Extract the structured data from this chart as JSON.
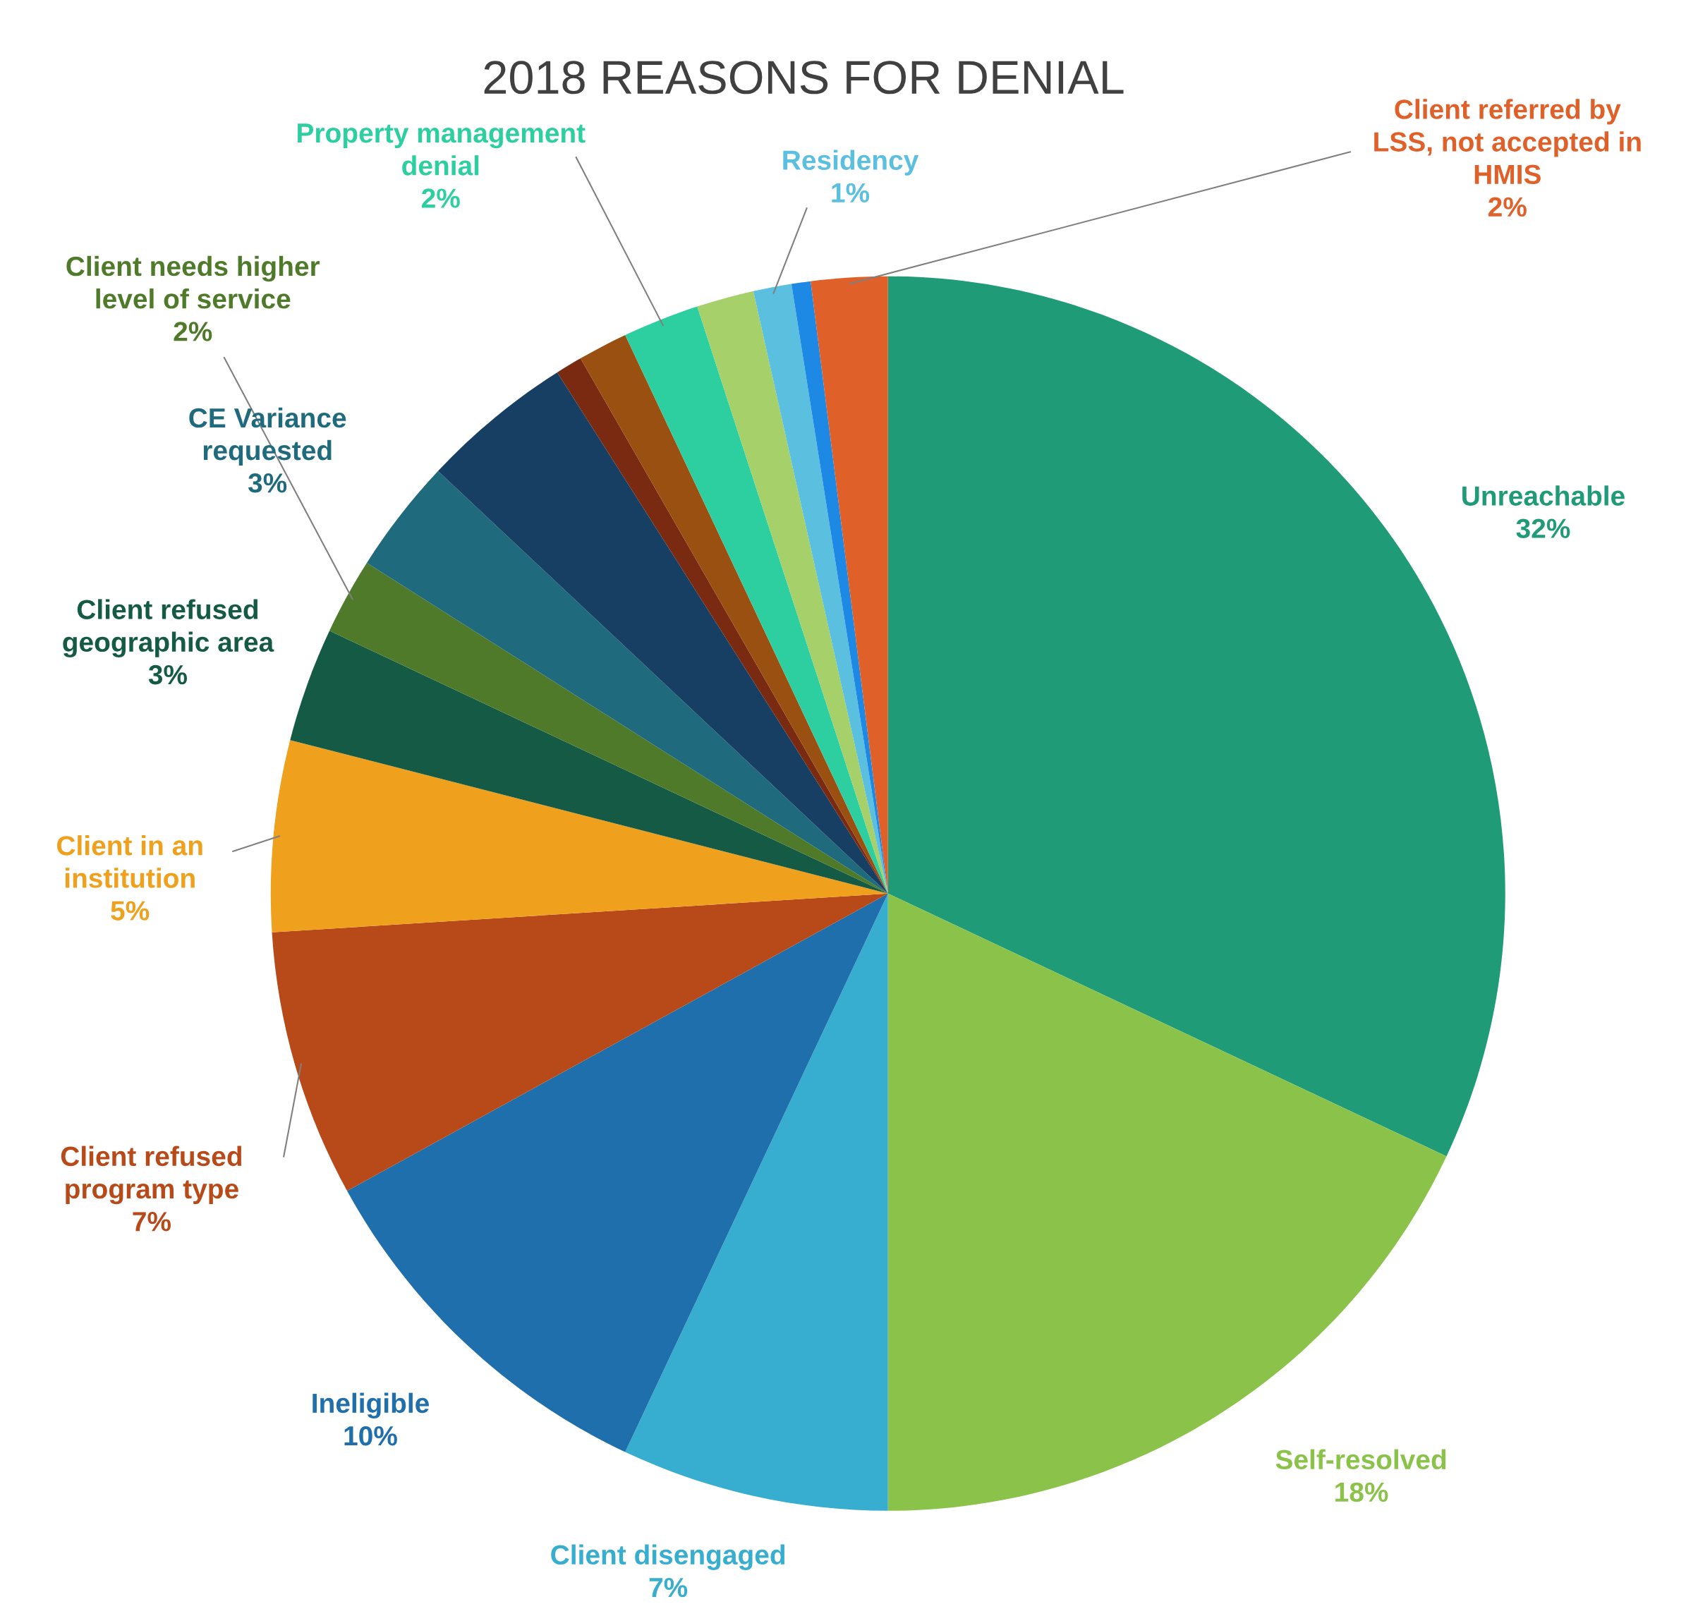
{
  "chart_data": {
    "type": "pie",
    "title": "2018 REASONS FOR DENIAL",
    "categories": [
      "Unreachable",
      "Self-resolved",
      "Client disengaged",
      "Ineligible",
      "Client refused\nprogram type",
      "Client in an\ninstitution",
      "Client refused\ngeographic area",
      "Client needs higher\nlevel of service",
      "CE Variance\nrequested",
      null,
      null,
      null,
      "Property management\ndenial",
      null,
      "Residency",
      null,
      "Client referred by\nLSS, not accepted in\nHMIS"
    ],
    "values": [
      32,
      18,
      7,
      10,
      7,
      5,
      3,
      2,
      3,
      4,
      0.7,
      1.3,
      2,
      1.5,
      1,
      0.5,
      2
    ],
    "value_labels": [
      "32%",
      "18%",
      "7%",
      "10%",
      "7%",
      "5%",
      "3%",
      "2%",
      "3%",
      null,
      null,
      null,
      "2%",
      null,
      "1%",
      null,
      "2%"
    ],
    "colors": [
      "#1f9b77",
      "#8bc34a",
      "#37aed0",
      "#1e6fab",
      "#b84a19",
      "#efa01d",
      "#145a44",
      "#4e7a2a",
      "#1f6b7d",
      "#163f63",
      "#7a2a10",
      "#9a5010",
      "#2dcfa0",
      "#a5d06a",
      "#5bbfe0",
      "#1e88e5",
      "#e0602a"
    ],
    "legend": false
  }
}
